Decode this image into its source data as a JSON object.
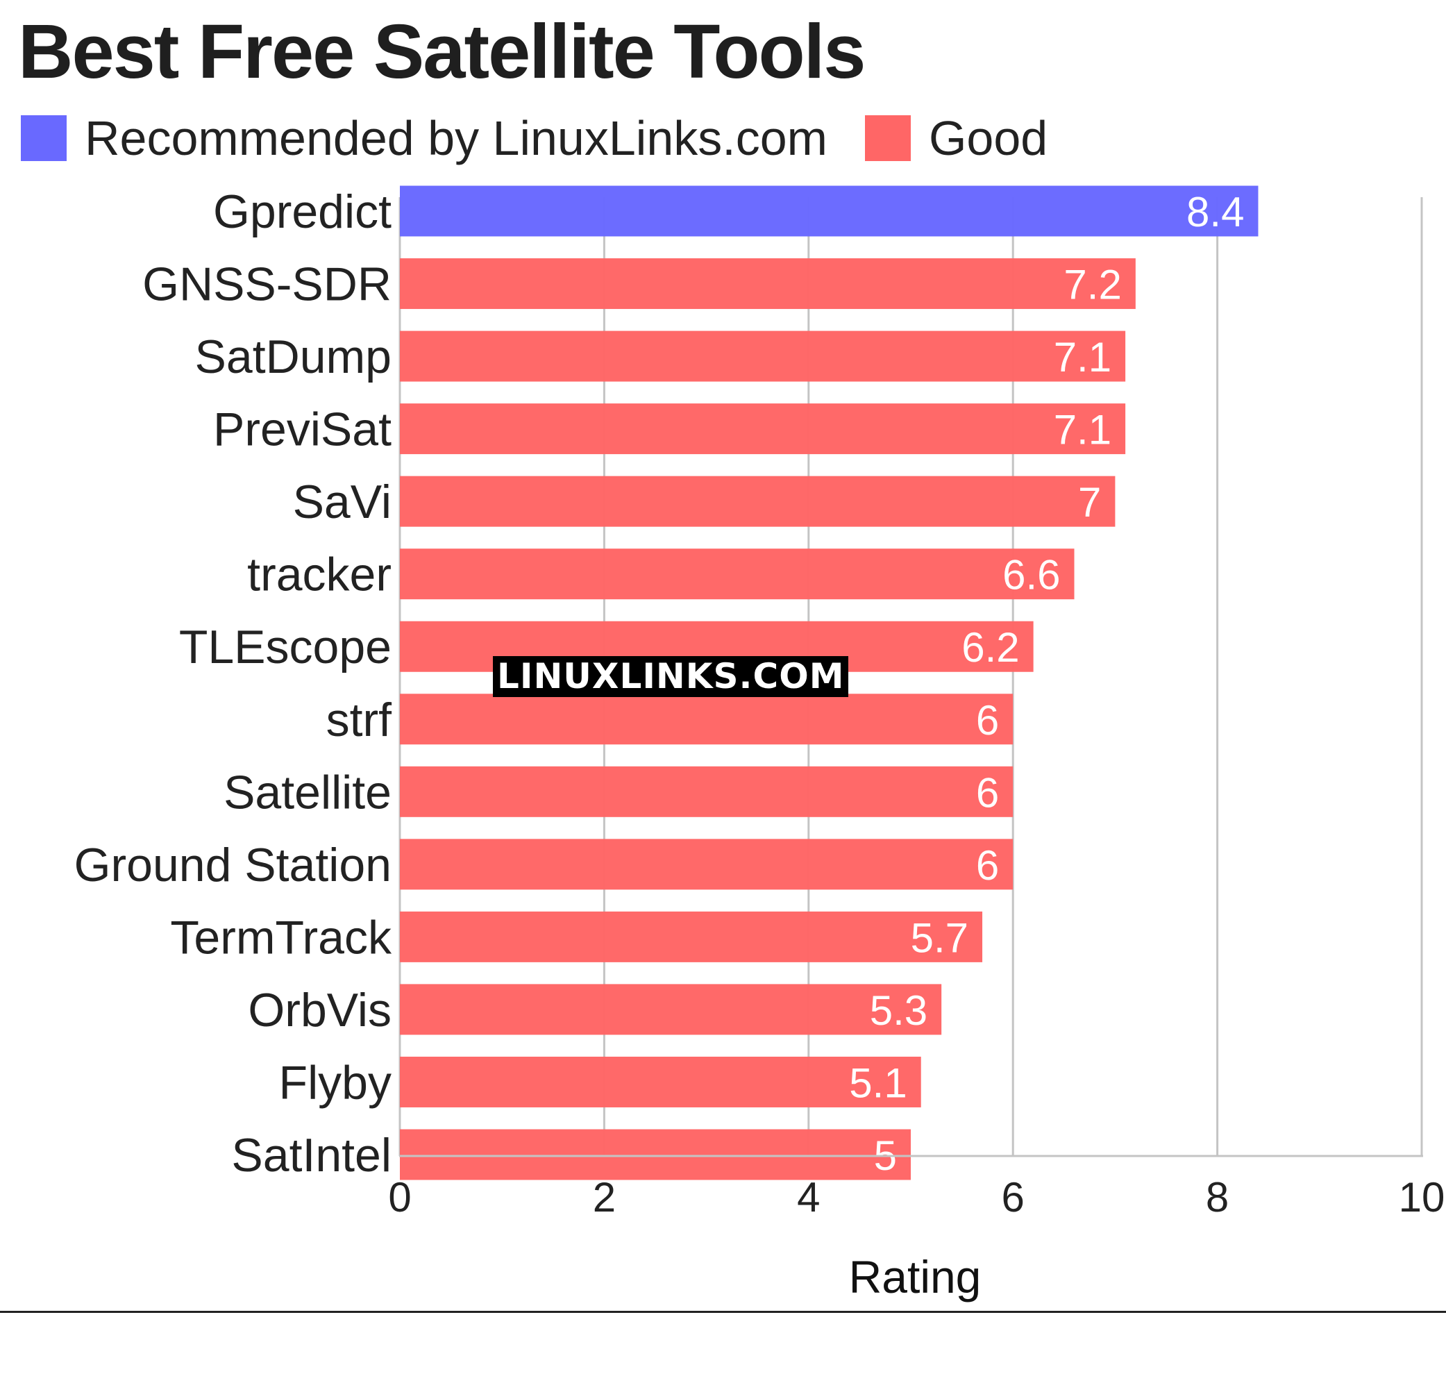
{
  "chart_data": {
    "type": "bar",
    "orientation": "horizontal",
    "title": "Best Free Satellite Tools",
    "xlabel": "Rating",
    "ylabel": "",
    "xlim": [
      0,
      10
    ],
    "x_ticks": [
      "0",
      "2",
      "4",
      "6",
      "8",
      "10"
    ],
    "grid": true,
    "legend_position": "top-left",
    "legend": [
      {
        "label": "Recommended by LinuxLinks.com",
        "color": "#6969ff"
      },
      {
        "label": "Good",
        "color": "#ff6666"
      }
    ],
    "categories": [
      "Gpredict",
      "GNSS-SDR",
      "SatDump",
      "PreviSat",
      "SaVi",
      "tracker",
      "TLEscope",
      "strf",
      "Satellite",
      "Ground Station",
      "TermTrack",
      "OrbVis",
      "Flyby",
      "SatIntel"
    ],
    "values": [
      8.4,
      7.2,
      7.1,
      7.1,
      7,
      6.6,
      6.2,
      6,
      6,
      6,
      5.7,
      5.3,
      5.1,
      5
    ],
    "value_labels": [
      "8.4",
      "7.2",
      "7.1",
      "7.1",
      "7",
      "6.6",
      "6.2",
      "6",
      "6",
      "6",
      "5.7",
      "5.3",
      "5.1",
      "5"
    ],
    "groups": [
      "Recommended by LinuxLinks.com",
      "Good",
      "Good",
      "Good",
      "Good",
      "Good",
      "Good",
      "Good",
      "Good",
      "Good",
      "Good",
      "Good",
      "Good",
      "Good"
    ]
  },
  "watermark": "LINUXLINKS.COM"
}
